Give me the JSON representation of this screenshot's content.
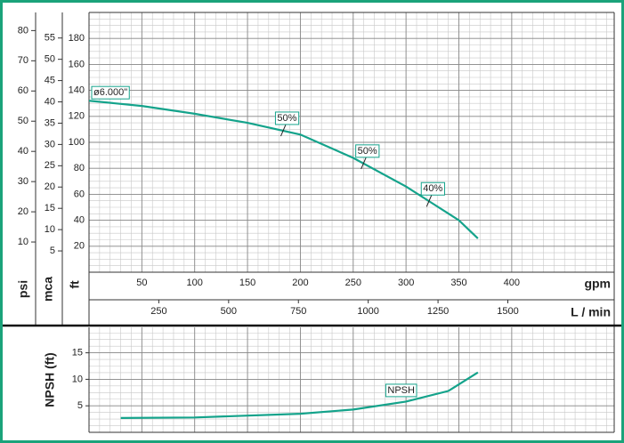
{
  "chart_data": [
    {
      "type": "line",
      "x": [
        0,
        50,
        100,
        150,
        200,
        250,
        300,
        325,
        350,
        368
      ],
      "series": [
        {
          "name": "ø6.000\"",
          "color": "#14a38b",
          "values": [
            132,
            128,
            122,
            115,
            106,
            88,
            66,
            53,
            40,
            26
          ]
        }
      ],
      "annotations": [
        {
          "text": "50%",
          "x": 184
        },
        {
          "text": "50%",
          "x": 260
        },
        {
          "text": "40%",
          "x": 322
        }
      ],
      "x_label": "gpm",
      "xlim": [
        0,
        497
      ],
      "xticks": [
        50,
        100,
        150,
        200,
        250,
        300,
        350,
        400
      ],
      "x2_label": "L / min",
      "x2lim": [
        0,
        1881
      ],
      "x2ticks": [
        250,
        500,
        750,
        1000,
        1250,
        1500
      ],
      "y_label": "ft",
      "ylim": [
        0,
        200
      ],
      "yticks": [
        20,
        40,
        60,
        80,
        100,
        120,
        140,
        160,
        180
      ],
      "psi_label": "psi",
      "psi_lim": [
        0,
        86
      ],
      "psi_ticks": [
        10,
        20,
        30,
        40,
        50,
        60,
        70,
        80
      ],
      "mca_label": "mca",
      "mca_lim": [
        0,
        61
      ],
      "mca_ticks": [
        5,
        10,
        15,
        20,
        25,
        30,
        35,
        40,
        45,
        50,
        55
      ],
      "grid": true
    },
    {
      "type": "line",
      "x": [
        30,
        100,
        200,
        250,
        300,
        340,
        368
      ],
      "series": [
        {
          "name": "NPSH",
          "color": "#14a38b",
          "values": [
            2.7,
            2.8,
            3.5,
            4.3,
            5.8,
            7.8,
            11.3
          ]
        }
      ],
      "label_x": 280,
      "y_label": "NPSH (ft)",
      "xlim": [
        0,
        497
      ],
      "ylim": [
        0,
        19.8
      ],
      "yticks": [
        5,
        10,
        15
      ],
      "grid": true
    }
  ]
}
